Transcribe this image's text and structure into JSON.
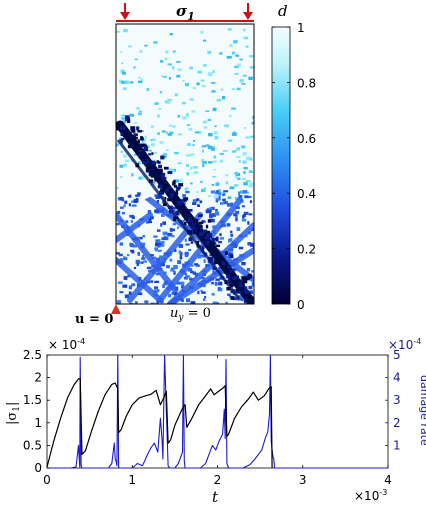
{
  "top_panel": {
    "load_label": "σ",
    "load_subscript": "1",
    "bc_left": "u = 0",
    "bc_bottom_var": "u",
    "bc_bottom_sub": "y",
    "bc_bottom_rest": " = 0",
    "colorbar": {
      "label": "d",
      "ticks": [
        "1",
        "0.8",
        "0.6",
        "0.4",
        "0.2",
        "0"
      ],
      "tick_values": [
        1,
        0.8,
        0.6,
        0.4,
        0.2,
        0
      ],
      "range": [
        0,
        1
      ],
      "colormap": [
        "#000033",
        "#0a1a8a",
        "#1f4fe0",
        "#2f8ff0",
        "#49cff5",
        "#bff4fb",
        "#f4fcff"
      ]
    },
    "colors": {
      "arrow": "#cc1111",
      "ground": "#d93322",
      "black": "#000000"
    }
  },
  "chart_data": {
    "type": "line",
    "xlabel": "t",
    "ylabel_left": "|σ",
    "ylabel_left_sub": "1",
    "ylabel_left_close": "|",
    "ylabel_right": "damage rate",
    "x_ticks": [
      "0",
      "1",
      "2",
      "3",
      "4"
    ],
    "x_exponent": "×10",
    "x_exponent_power": "-3",
    "y_left_ticks": [
      "0",
      "0.5",
      "1",
      "1.5",
      "2",
      "2.5"
    ],
    "y_left_exponent": "× 10",
    "y_left_exponent_power": "-4",
    "y_right_ticks": [
      "1",
      "2",
      "3",
      "4",
      "5"
    ],
    "y_right_exponent": "×10",
    "y_right_exponent_power": "-4",
    "xlim": [
      0,
      4
    ],
    "ylim_left": [
      0,
      2.5
    ],
    "ylim_right": [
      0,
      5
    ],
    "series": [
      {
        "axis": "left",
        "color": "#000000",
        "x": [
          0,
          0.08,
          0.16,
          0.24,
          0.32,
          0.37,
          0.39,
          0.41,
          0.45,
          0.52,
          0.6,
          0.68,
          0.76,
          0.8,
          0.83,
          0.84,
          0.87,
          0.93,
          1.0,
          1.08,
          1.16,
          1.22,
          1.28,
          1.33,
          1.37,
          1.4,
          1.42,
          1.45,
          1.5,
          1.56,
          1.6,
          1.62,
          1.64,
          1.7,
          1.78,
          1.86,
          1.92,
          1.96,
          2.0,
          2.06,
          2.09,
          2.11,
          2.13,
          2.2,
          2.28,
          2.36,
          2.42,
          2.48,
          2.55,
          2.6,
          2.63,
          2.64
        ],
        "y": [
          0.02,
          0.6,
          1.1,
          1.55,
          1.85,
          1.97,
          1.98,
          0.3,
          0.38,
          0.8,
          1.25,
          1.62,
          1.85,
          1.88,
          1.75,
          0.78,
          0.85,
          1.15,
          1.4,
          1.55,
          1.6,
          1.63,
          1.72,
          1.4,
          1.55,
          1.7,
          0.55,
          0.62,
          0.95,
          1.2,
          1.36,
          1.4,
          0.9,
          1.1,
          1.4,
          1.6,
          1.75,
          1.62,
          1.68,
          1.76,
          1.82,
          0.7,
          0.75,
          1.1,
          1.35,
          1.52,
          1.68,
          1.5,
          1.6,
          1.75,
          1.8,
          0.0
        ]
      },
      {
        "axis": "right",
        "color": "#1a1acc",
        "x": [
          0,
          0.2,
          0.28,
          0.34,
          0.37,
          0.38,
          0.385,
          0.39,
          0.4,
          0.41,
          0.42,
          0.44,
          0.5,
          0.58,
          0.66,
          0.72,
          0.76,
          0.79,
          0.8,
          0.81,
          0.82,
          0.83,
          0.84,
          0.85,
          0.9,
          1.0,
          1.06,
          1.12,
          1.18,
          1.22,
          1.26,
          1.3,
          1.33,
          1.35,
          1.36,
          1.38,
          1.42,
          1.44,
          1.48,
          1.5,
          1.54,
          1.57,
          1.59,
          1.6,
          1.61,
          1.62,
          1.64,
          1.7,
          1.8,
          1.86,
          1.9,
          1.94,
          1.98,
          2.02,
          2.06,
          2.08,
          2.09,
          2.1,
          2.11,
          2.13,
          2.2,
          2.3,
          2.38,
          2.44,
          2.48,
          2.52,
          2.56,
          2.59,
          2.61,
          2.62,
          2.63,
          2.65,
          2.66,
          2.67,
          4.0
        ],
        "y": [
          0,
          0,
          0,
          0.05,
          1.0,
          0.3,
          0.05,
          4.9,
          0.1,
          0,
          0,
          0,
          0,
          0,
          0,
          0,
          0.2,
          1.1,
          0.4,
          0.3,
          0.1,
          5.0,
          0.05,
          0,
          0,
          0,
          0.2,
          0.1,
          0.6,
          0.9,
          1.1,
          0.7,
          2.2,
          1.2,
          0.4,
          5.0,
          0.1,
          0,
          0,
          0,
          0.2,
          0.5,
          0.7,
          5.0,
          0.3,
          0,
          0,
          0,
          0,
          0.2,
          0.6,
          1.0,
          0.8,
          1.2,
          1.5,
          2.6,
          1.3,
          4.8,
          0.2,
          0,
          0,
          0,
          0.15,
          0.4,
          0.6,
          0.8,
          1.3,
          1.6,
          2.4,
          5.0,
          1.2,
          0.5,
          0.4,
          0,
          0
        ]
      }
    ]
  }
}
